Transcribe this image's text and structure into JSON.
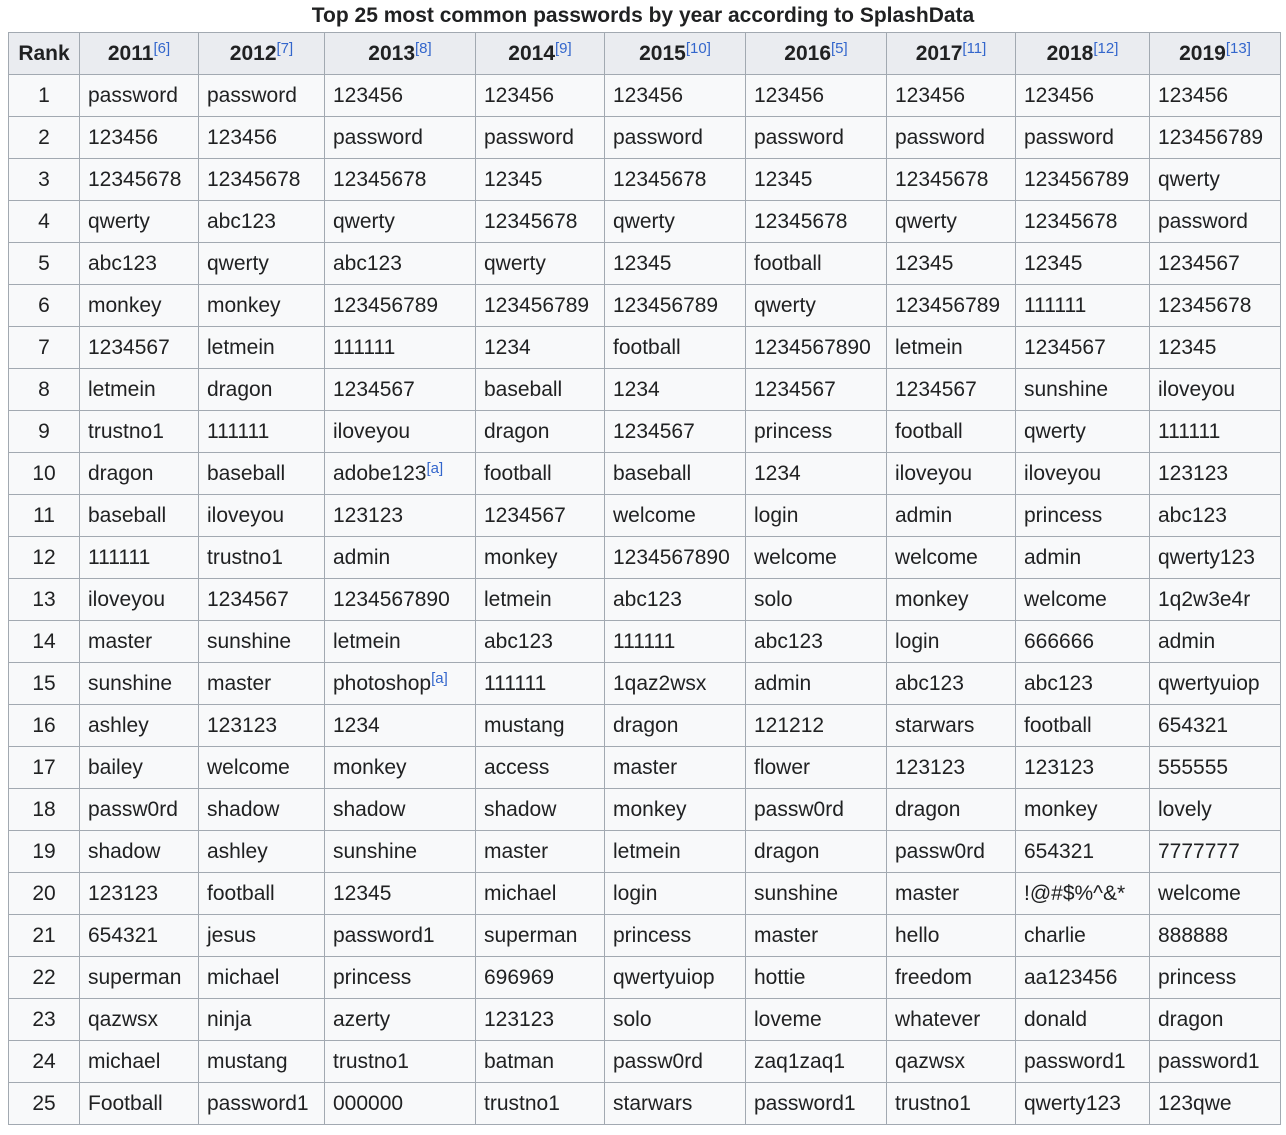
{
  "caption": "Top 25 most common passwords by year according to SplashData",
  "columns": [
    {
      "label": "Rank",
      "ref": ""
    },
    {
      "label": "2011",
      "ref": "[6]"
    },
    {
      "label": "2012",
      "ref": "[7]"
    },
    {
      "label": "2013",
      "ref": "[8]"
    },
    {
      "label": "2014",
      "ref": "[9]"
    },
    {
      "label": "2015",
      "ref": "[10]"
    },
    {
      "label": "2016",
      "ref": "[5]"
    },
    {
      "label": "2017",
      "ref": "[11]"
    },
    {
      "label": "2018",
      "ref": "[12]"
    },
    {
      "label": "2019",
      "ref": "[13]"
    }
  ],
  "rows": [
    [
      "1",
      "password",
      "password",
      "123456",
      "123456",
      "123456",
      "123456",
      "123456",
      "123456",
      "123456"
    ],
    [
      "2",
      "123456",
      "123456",
      "password",
      "password",
      "password",
      "password",
      "password",
      "password",
      "123456789"
    ],
    [
      "3",
      "12345678",
      "12345678",
      "12345678",
      "12345",
      "12345678",
      "12345",
      "12345678",
      "123456789",
      "qwerty"
    ],
    [
      "4",
      "qwerty",
      "abc123",
      "qwerty",
      "12345678",
      "qwerty",
      "12345678",
      "qwerty",
      "12345678",
      "password"
    ],
    [
      "5",
      "abc123",
      "qwerty",
      "abc123",
      "qwerty",
      "12345",
      "football",
      "12345",
      "12345",
      "1234567"
    ],
    [
      "6",
      "monkey",
      "monkey",
      "123456789",
      "123456789",
      "123456789",
      "qwerty",
      "123456789",
      "111111",
      "12345678"
    ],
    [
      "7",
      "1234567",
      "letmein",
      "111111",
      "1234",
      "football",
      "1234567890",
      "letmein",
      "1234567",
      "12345"
    ],
    [
      "8",
      "letmein",
      "dragon",
      "1234567",
      "baseball",
      "1234",
      "1234567",
      "1234567",
      "sunshine",
      "iloveyou"
    ],
    [
      "9",
      "trustno1",
      "111111",
      "iloveyou",
      "dragon",
      "1234567",
      "princess",
      "football",
      "qwerty",
      "111111"
    ],
    [
      "10",
      "dragon",
      "baseball",
      "adobe123",
      "football",
      "baseball",
      "1234",
      "iloveyou",
      "iloveyou",
      "123123"
    ],
    [
      "11",
      "baseball",
      "iloveyou",
      "123123",
      "1234567",
      "welcome",
      "login",
      "admin",
      "princess",
      "abc123"
    ],
    [
      "12",
      "111111",
      "trustno1",
      "admin",
      "monkey",
      "1234567890",
      "welcome",
      "welcome",
      "admin",
      "qwerty123"
    ],
    [
      "13",
      "iloveyou",
      "1234567",
      "1234567890",
      "letmein",
      "abc123",
      "solo",
      "monkey",
      "welcome",
      "1q2w3e4r"
    ],
    [
      "14",
      "master",
      "sunshine",
      "letmein",
      "abc123",
      "111111",
      "abc123",
      "login",
      "666666",
      "admin"
    ],
    [
      "15",
      "sunshine",
      "master",
      "photoshop",
      "111111",
      "1qaz2wsx",
      "admin",
      "abc123",
      "abc123",
      "qwertyuiop"
    ],
    [
      "16",
      "ashley",
      "123123",
      "1234",
      "mustang",
      "dragon",
      "121212",
      "starwars",
      "football",
      "654321"
    ],
    [
      "17",
      "bailey",
      "welcome",
      "monkey",
      "access",
      "master",
      "flower",
      "123123",
      "123123",
      "555555"
    ],
    [
      "18",
      "passw0rd",
      "shadow",
      "shadow",
      "shadow",
      "monkey",
      "passw0rd",
      "dragon",
      "monkey",
      "lovely"
    ],
    [
      "19",
      "shadow",
      "ashley",
      "sunshine",
      "master",
      "letmein",
      "dragon",
      "passw0rd",
      "654321",
      "7777777"
    ],
    [
      "20",
      "123123",
      "football",
      "12345",
      "michael",
      "login",
      "sunshine",
      "master",
      "!@#$%^&*",
      "welcome"
    ],
    [
      "21",
      "654321",
      "jesus",
      "password1",
      "superman",
      "princess",
      "master",
      "hello",
      "charlie",
      "888888"
    ],
    [
      "22",
      "superman",
      "michael",
      "princess",
      "696969",
      "qwertyuiop",
      "hottie",
      "freedom",
      "aa123456",
      "princess"
    ],
    [
      "23",
      "qazwsx",
      "ninja",
      "azerty",
      "123123",
      "solo",
      "loveme",
      "whatever",
      "donald",
      "dragon"
    ],
    [
      "24",
      "michael",
      "mustang",
      "trustno1",
      "batman",
      "passw0rd",
      "zaq1zaq1",
      "qazwsx",
      "password1",
      "password1"
    ],
    [
      "25",
      "Football",
      "password1",
      "000000",
      "trustno1",
      "starwars",
      "password1",
      "trustno1",
      "qwerty123",
      "123qwe"
    ]
  ],
  "cell_notes": [
    {
      "row": 9,
      "col": 3,
      "text": "[a]"
    },
    {
      "row": 14,
      "col": 3,
      "text": "[a]"
    }
  ]
}
